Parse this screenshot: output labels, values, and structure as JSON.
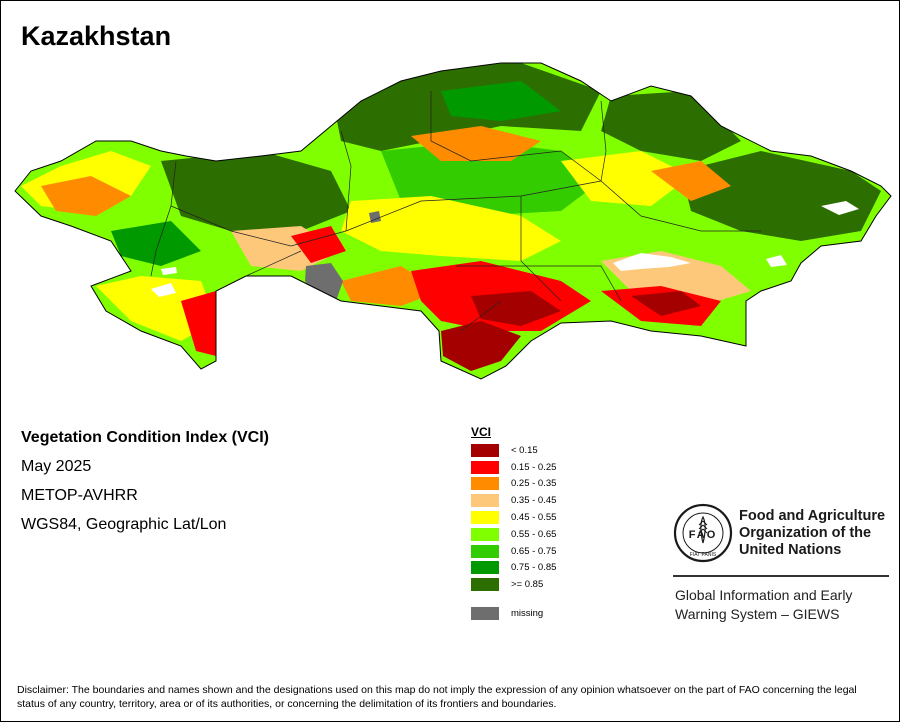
{
  "map": {
    "title": "Kazakhstan"
  },
  "info": {
    "heading": "Vegetation Condition Index (VCI)",
    "period": "May 2025",
    "sensor": "METOP-AVHRR",
    "projection": "WGS84, Geographic Lat/Lon"
  },
  "legend": {
    "title": "VCI",
    "classes": [
      {
        "label": "< 0.15",
        "color": "#a50000"
      },
      {
        "label": "0.15 - 0.25",
        "color": "#ff0000"
      },
      {
        "label": "0.25 - 0.35",
        "color": "#ff8c00"
      },
      {
        "label": "0.35 - 0.45",
        "color": "#fdc87a"
      },
      {
        "label": "0.45 - 0.55",
        "color": "#ffff00"
      },
      {
        "label": "0.55 - 0.65",
        "color": "#80ff00"
      },
      {
        "label": "0.65 - 0.75",
        "color": "#33cc00"
      },
      {
        "label": "0.75 - 0.85",
        "color": "#009900"
      },
      {
        "label": ">= 0.85",
        "color": "#2d6e00"
      }
    ],
    "missing": {
      "label": "missing",
      "color": "#6e6e6e"
    }
  },
  "fao": {
    "logo_text": "FAO",
    "logo_motto": "FIAT PANIS",
    "name_line1": "Food and Agriculture",
    "name_line2": "Organization of the",
    "name_line3": "United Nations",
    "giews_line1": "Global Information and Early",
    "giews_line2": "Warning System – GIEWS"
  },
  "disclaimer": "Disclaimer: The boundaries and names shown and the designations used on this map do not imply the expression of any opinion whatsoever on the part of FAO concerning the legal status of any country, territory, area or of its authorities, or concerning the delimitation of its frontiers and boundaries."
}
